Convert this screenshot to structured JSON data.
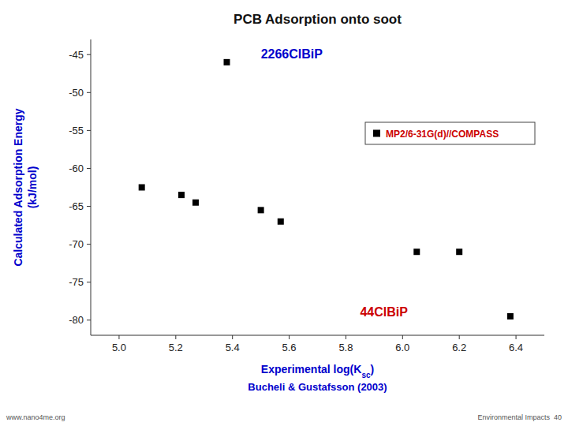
{
  "chart_data": {
    "type": "scatter",
    "title": "PCB Adsorption onto soot",
    "xlabel": {
      "text": "Experimental log(K",
      "subscript": "sc",
      "suffix": ")",
      "line2": "Bucheli & Gustafsson (2003)",
      "color": "#0000cc"
    },
    "ylabel": {
      "lines": [
        "Calculated Adsorption Energy",
        "(kJ/mol)"
      ],
      "color": "#0000cc"
    },
    "x": [
      5.08,
      5.22,
      5.27,
      5.5,
      5.57,
      6.05,
      6.2,
      6.38,
      5.38
    ],
    "series": [
      {
        "name": "MP2/6-31G(d)//COMPASS",
        "name_color": "#cc0000",
        "color": "black",
        "marker": "square",
        "values": [
          -62.5,
          -63.5,
          -64.5,
          -65.5,
          -67.0,
          -71.0,
          -71.0,
          -79.5,
          -46.0
        ]
      }
    ],
    "xlim": [
      4.9,
      6.5
    ],
    "ylim": [
      -82,
      -43
    ],
    "xticks": [
      {
        "value": 5.0,
        "label": "5.0"
      },
      5.2,
      5.4,
      5.6,
      5.8,
      {
        "value": 6.0,
        "label": "6.0"
      },
      6.2,
      6.4
    ],
    "yticks": [
      -45,
      -50,
      -55,
      -60,
      -65,
      -70,
      -75,
      -80
    ],
    "annotations": [
      {
        "text": "2266ClBiP",
        "x": 5.5,
        "y": -45.5,
        "color": "#0000cc"
      },
      {
        "text": "44ClBiP",
        "x": 5.85,
        "y": -79.5,
        "color": "#cc0000"
      }
    ],
    "footer_left": "www.nano4me.org",
    "footer_right": "Environmental Impacts  40",
    "legend": "right",
    "grid": false
  }
}
